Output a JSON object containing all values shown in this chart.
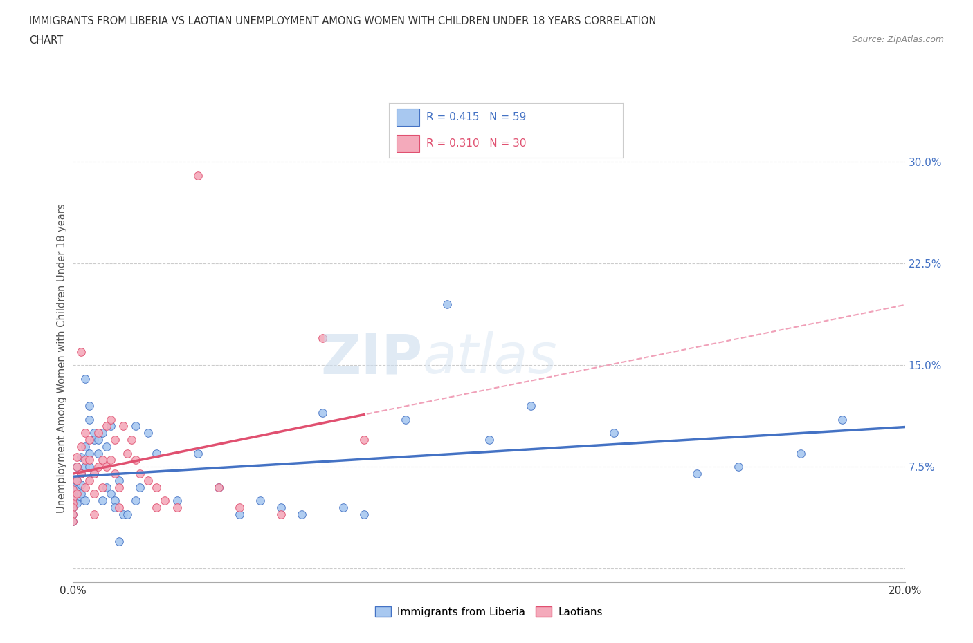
{
  "title_line1": "IMMIGRANTS FROM LIBERIA VS LAOTIAN UNEMPLOYMENT AMONG WOMEN WITH CHILDREN UNDER 18 YEARS CORRELATION",
  "title_line2": "CHART",
  "source": "Source: ZipAtlas.com",
  "ylabel": "Unemployment Among Women with Children Under 18 years",
  "xlim": [
    0.0,
    0.2
  ],
  "ylim": [
    -0.01,
    0.32
  ],
  "yticks": [
    0.0,
    0.075,
    0.15,
    0.225,
    0.3
  ],
  "ytick_labels": [
    "",
    "7.5%",
    "15.0%",
    "22.5%",
    "30.0%"
  ],
  "xticks": [
    0.0,
    0.04,
    0.08,
    0.12,
    0.16,
    0.2
  ],
  "xtick_labels": [
    "0.0%",
    "",
    "",
    "",
    "",
    "20.0%"
  ],
  "color_blue": "#A8C8F0",
  "color_pink": "#F4AABB",
  "color_blue_line": "#4472C4",
  "color_pink_line": "#E05070",
  "color_dashed": "#F0A0B8",
  "background_color": "#FFFFFF",
  "watermark_zip": "ZIP",
  "watermark_atlas": "atlas",
  "liberia_x": [
    0.0,
    0.0,
    0.0,
    0.0,
    0.0,
    0.0,
    0.001,
    0.001,
    0.001,
    0.001,
    0.001,
    0.002,
    0.002,
    0.002,
    0.002,
    0.003,
    0.003,
    0.003,
    0.003,
    0.004,
    0.004,
    0.004,
    0.004,
    0.005,
    0.005,
    0.005,
    0.006,
    0.006,
    0.007,
    0.007,
    0.008,
    0.008,
    0.009,
    0.009,
    0.01,
    0.01,
    0.011,
    0.011,
    0.012,
    0.013,
    0.015,
    0.015,
    0.016,
    0.018,
    0.02,
    0.025,
    0.03,
    0.035,
    0.04,
    0.045,
    0.05,
    0.055,
    0.06,
    0.065,
    0.07,
    0.08,
    0.09,
    0.1,
    0.11,
    0.13,
    0.15,
    0.16,
    0.175,
    0.185
  ],
  "liberia_y": [
    0.06,
    0.055,
    0.05,
    0.045,
    0.04,
    0.035,
    0.075,
    0.065,
    0.058,
    0.052,
    0.048,
    0.082,
    0.07,
    0.062,
    0.055,
    0.14,
    0.09,
    0.075,
    0.05,
    0.12,
    0.11,
    0.085,
    0.075,
    0.1,
    0.095,
    0.07,
    0.095,
    0.085,
    0.1,
    0.05,
    0.09,
    0.06,
    0.105,
    0.055,
    0.05,
    0.045,
    0.065,
    0.02,
    0.04,
    0.04,
    0.105,
    0.05,
    0.06,
    0.1,
    0.085,
    0.05,
    0.085,
    0.06,
    0.04,
    0.05,
    0.045,
    0.04,
    0.115,
    0.045,
    0.04,
    0.11,
    0.195,
    0.095,
    0.12,
    0.1,
    0.07,
    0.075,
    0.085,
    0.11
  ],
  "laotian_x": [
    0.0,
    0.0,
    0.0,
    0.0,
    0.0,
    0.0,
    0.001,
    0.001,
    0.001,
    0.001,
    0.002,
    0.002,
    0.002,
    0.003,
    0.003,
    0.003,
    0.004,
    0.004,
    0.004,
    0.005,
    0.005,
    0.005,
    0.006,
    0.006,
    0.007,
    0.007,
    0.008,
    0.008,
    0.009,
    0.009,
    0.01,
    0.01,
    0.011,
    0.011,
    0.012,
    0.013,
    0.014,
    0.015,
    0.016,
    0.018,
    0.02,
    0.02,
    0.022,
    0.025,
    0.03,
    0.035,
    0.04,
    0.05,
    0.06,
    0.07
  ],
  "laotian_y": [
    0.058,
    0.052,
    0.048,
    0.045,
    0.04,
    0.035,
    0.082,
    0.075,
    0.065,
    0.055,
    0.16,
    0.09,
    0.07,
    0.1,
    0.08,
    0.06,
    0.095,
    0.08,
    0.065,
    0.07,
    0.055,
    0.04,
    0.1,
    0.075,
    0.08,
    0.06,
    0.105,
    0.075,
    0.11,
    0.08,
    0.095,
    0.07,
    0.06,
    0.045,
    0.105,
    0.085,
    0.095,
    0.08,
    0.07,
    0.065,
    0.06,
    0.045,
    0.05,
    0.045,
    0.29,
    0.06,
    0.045,
    0.04,
    0.17,
    0.095
  ]
}
